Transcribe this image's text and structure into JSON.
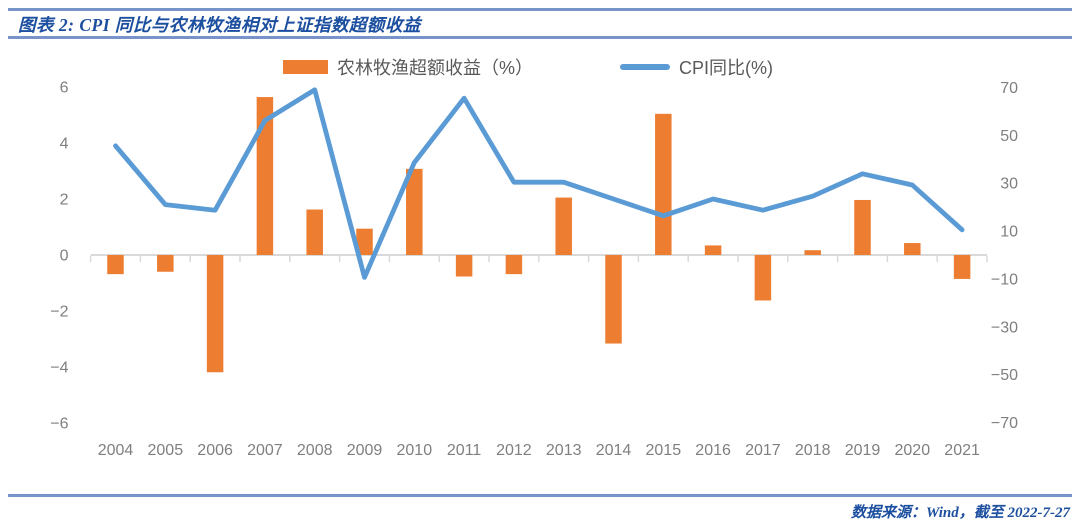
{
  "header": {
    "title": "图表 2: CPI 同比与农林牧渔相对上证指数超额收益"
  },
  "footer": {
    "source": "数据来源：Wind，截至 2022-7-27"
  },
  "colors": {
    "bar": "#ED7D31",
    "line": "#5B9BD5",
    "title_blue": "#1C4F9F",
    "rule_blue": "#7793C9",
    "axis_text": "#7F7F7F",
    "legend_text": "#595959",
    "axis_line": "#D9D9D9"
  },
  "chart_data": {
    "type": "bar",
    "subtype": "combo-bar-line-dual-axis",
    "title": "CPI 同比与农林牧渔相对上证指数超额收益",
    "categories": [
      "2004",
      "2005",
      "2006",
      "2007",
      "2008",
      "2009",
      "2010",
      "2011",
      "2012",
      "2013",
      "2014",
      "2015",
      "2016",
      "2017",
      "2018",
      "2019",
      "2020",
      "2021"
    ],
    "series": [
      {
        "name": "农林牧渔超额收益（%）",
        "type": "bar",
        "axis": "right",
        "values": [
          -8,
          -7,
          -49,
          66,
          19,
          11,
          36,
          -9,
          -8,
          24,
          -37,
          59,
          4,
          -19,
          2,
          23,
          5,
          -10
        ]
      },
      {
        "name": "CPI同比(%)",
        "type": "line",
        "axis": "left",
        "values": [
          3.9,
          1.8,
          1.6,
          4.8,
          5.9,
          -0.8,
          3.3,
          5.6,
          2.6,
          2.6,
          2.0,
          1.4,
          2.0,
          1.6,
          2.1,
          2.9,
          2.5,
          0.9
        ]
      }
    ],
    "left_axis": {
      "ticks": [
        6,
        4,
        2,
        0,
        -2,
        -4,
        -6
      ],
      "min": -6,
      "max": 6
    },
    "right_axis": {
      "ticks": [
        70,
        50,
        30,
        10,
        -10,
        -30,
        -50,
        -70
      ],
      "min": -70,
      "max": 70
    },
    "legend_position": "top",
    "grid": false
  }
}
